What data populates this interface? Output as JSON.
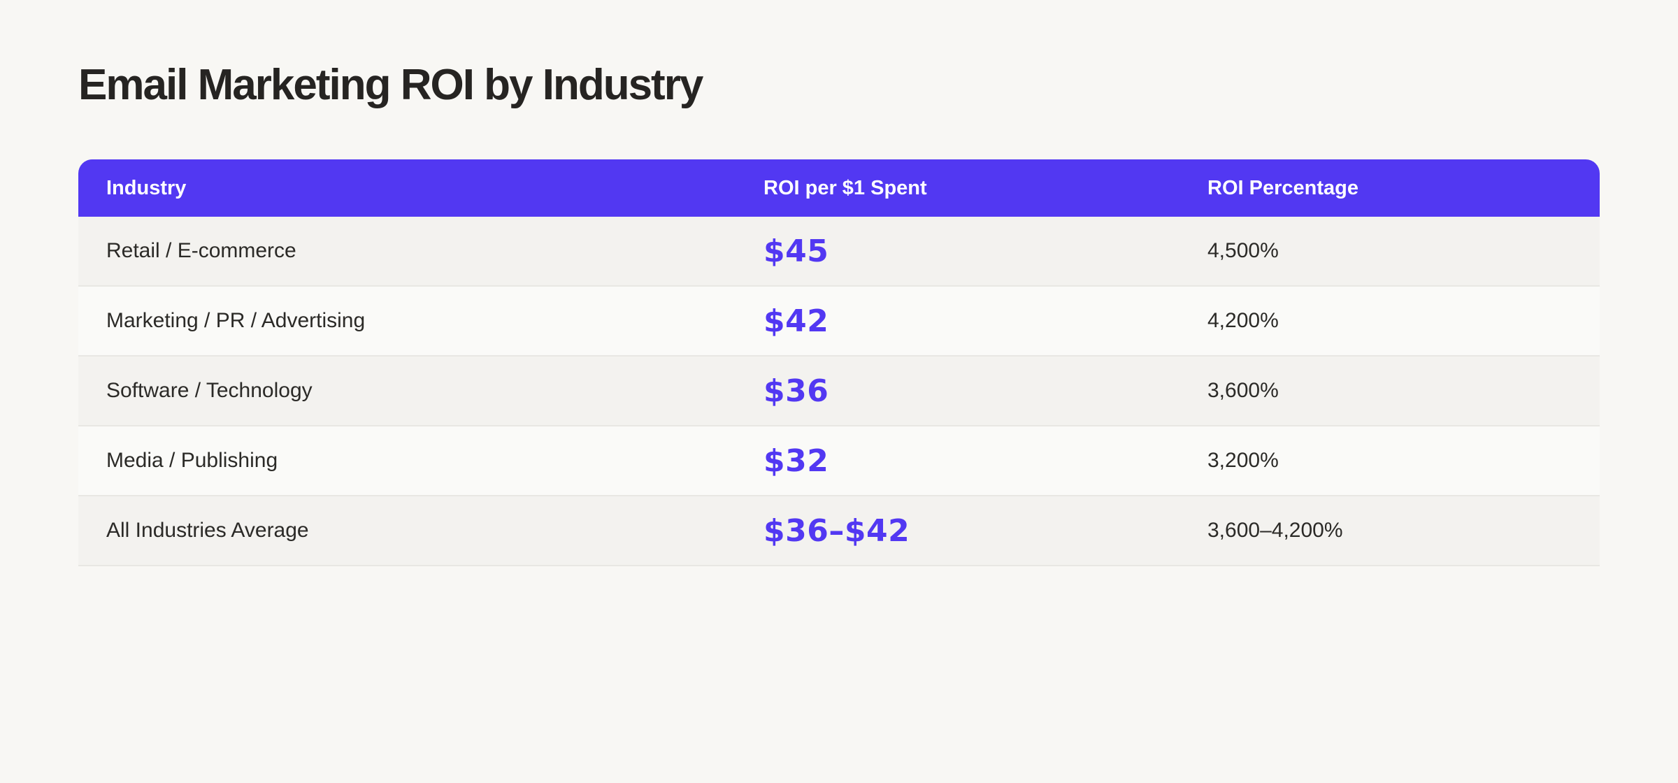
{
  "theme": {
    "page_bg": "#f8f7f4",
    "accent": "#5238f2",
    "header_text": "#ffffff",
    "row_alt_bg": "#f3f2ef",
    "row_bg": "#fafaf8",
    "divider": "#e8e7e3",
    "text": "#2b2a27",
    "title": "#262422"
  },
  "page": {
    "title": "Email Marketing ROI by Industry"
  },
  "chart_data": {
    "type": "table",
    "title": "Email Marketing ROI by Industry",
    "columns": [
      "Industry",
      "ROI per $1 Spent",
      "ROI Percentage"
    ],
    "rows": [
      [
        "Retail / E-commerce",
        "$45",
        "4,500%"
      ],
      [
        "Marketing / PR / Advertising",
        "$42",
        "4,200%"
      ],
      [
        "Software / Technology",
        "$36",
        "3,600%"
      ],
      [
        "Media / Publishing",
        "$32",
        "3,200%"
      ],
      [
        "All Industries Average",
        "$36–$42",
        "3,600–4,200%"
      ]
    ],
    "roi_per_dollar_numeric": [
      45,
      42,
      36,
      32,
      [
        36,
        42
      ]
    ],
    "roi_percentage_numeric": [
      4500,
      4200,
      3600,
      3200,
      [
        3600,
        4200
      ]
    ]
  }
}
